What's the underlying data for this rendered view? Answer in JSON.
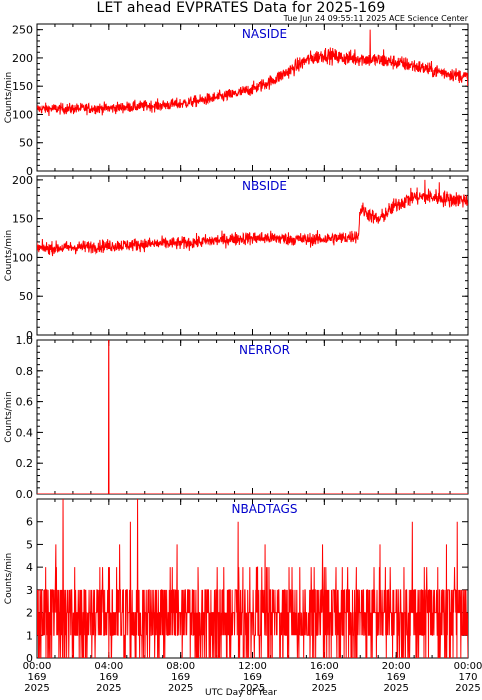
{
  "header": {
    "title": "LET ahead EVPRATES Data for 2025-169",
    "timestamp": "Tue Jun 24 09:55:11 2025 ACE Science Center"
  },
  "x_axis": {
    "title": "UTC Day of Year",
    "ticks": [
      {
        "time": "00:00",
        "day": "169",
        "year": "2025",
        "hour": 0
      },
      {
        "time": "04:00",
        "day": "169",
        "year": "2025",
        "hour": 4
      },
      {
        "time": "08:00",
        "day": "169",
        "year": "2025",
        "hour": 8
      },
      {
        "time": "12:00",
        "day": "169",
        "year": "2025",
        "hour": 12
      },
      {
        "time": "16:00",
        "day": "169",
        "year": "2025",
        "hour": 16
      },
      {
        "time": "20:00",
        "day": "169",
        "year": "2025",
        "hour": 20
      },
      {
        "time": "00:00",
        "day": "170",
        "year": "2025",
        "hour": 24
      }
    ]
  },
  "colors": {
    "series": "#ff0000",
    "panel_label": "#0000cc",
    "axes": "#000000"
  },
  "chart_data": [
    {
      "type": "line",
      "title": "NASIDE",
      "ylabel": "Counts/min",
      "ylim": [
        0,
        260
      ],
      "yticks": [
        0,
        50,
        100,
        150,
        200,
        250
      ],
      "x_unit": "hour of day 169",
      "noise": 6,
      "x": [
        0,
        1,
        2,
        3,
        4,
        5,
        6,
        7,
        8,
        9,
        10,
        11,
        12,
        13,
        14,
        15,
        16,
        17,
        18,
        19,
        20,
        21,
        22,
        23,
        24
      ],
      "y": [
        110,
        110,
        110,
        111,
        111,
        113,
        115,
        116,
        119,
        124,
        130,
        136,
        145,
        158,
        176,
        196,
        206,
        200,
        199,
        196,
        192,
        186,
        178,
        172,
        166
      ],
      "spikes": [
        {
          "x": 18.55,
          "y": 250
        },
        {
          "x": 17.7,
          "y": 215
        },
        {
          "x": 19.3,
          "y": 215
        }
      ]
    },
    {
      "type": "line",
      "title": "NBSIDE",
      "ylabel": "Counts/min",
      "ylim": [
        0,
        205
      ],
      "yticks": [
        0,
        50,
        100,
        150,
        200
      ],
      "x_unit": "hour of day 169",
      "noise": 5,
      "x": [
        0,
        1,
        2,
        3,
        4,
        5,
        6,
        7,
        8,
        9,
        10,
        11,
        12,
        13,
        14,
        15,
        16,
        17,
        17.9,
        18,
        19,
        20,
        21,
        22,
        23,
        24
      ],
      "y": [
        112,
        112,
        113,
        114,
        115,
        116,
        117,
        118,
        118,
        120,
        122,
        124,
        125,
        125,
        124,
        123,
        124,
        125,
        128,
        163,
        148,
        168,
        178,
        178,
        175,
        174
      ],
      "spikes": [
        {
          "x": 21.6,
          "y": 200
        },
        {
          "x": 22.4,
          "y": 197
        }
      ]
    },
    {
      "type": "line",
      "title": "NERROR",
      "ylabel": "Counts/min",
      "ylim": [
        0,
        1
      ],
      "yticks": [
        0.0,
        0.2,
        0.4,
        0.6,
        0.8,
        1.0
      ],
      "x_unit": "hour of day 169",
      "x": [
        0,
        3.98,
        3.99,
        4.0,
        4.01,
        24
      ],
      "y": [
        0,
        0,
        1,
        1,
        0,
        0
      ]
    },
    {
      "type": "line",
      "title": "NBADTAGS",
      "ylabel": "Counts/min",
      "ylim": [
        0,
        7
      ],
      "yticks": [
        0,
        1,
        2,
        3,
        4,
        5,
        6
      ],
      "x_unit": "hour of day 169",
      "value_range": [
        0,
        3
      ],
      "peaks": [
        {
          "x": 1.45,
          "y": 7
        },
        {
          "x": 5.6,
          "y": 7
        },
        {
          "x": 5.2,
          "y": 6
        },
        {
          "x": 1.05,
          "y": 5
        },
        {
          "x": 2.1,
          "y": 4
        },
        {
          "x": 3.5,
          "y": 4
        },
        {
          "x": 4.6,
          "y": 5
        },
        {
          "x": 7.8,
          "y": 5
        },
        {
          "x": 11.2,
          "y": 6
        },
        {
          "x": 12.7,
          "y": 5
        },
        {
          "x": 14.2,
          "y": 4
        },
        {
          "x": 15.9,
          "y": 5
        },
        {
          "x": 17.3,
          "y": 4
        },
        {
          "x": 19.1,
          "y": 5
        },
        {
          "x": 20.9,
          "y": 6
        },
        {
          "x": 21.7,
          "y": 4
        },
        {
          "x": 22.8,
          "y": 5
        },
        {
          "x": 23.4,
          "y": 6
        }
      ]
    }
  ]
}
